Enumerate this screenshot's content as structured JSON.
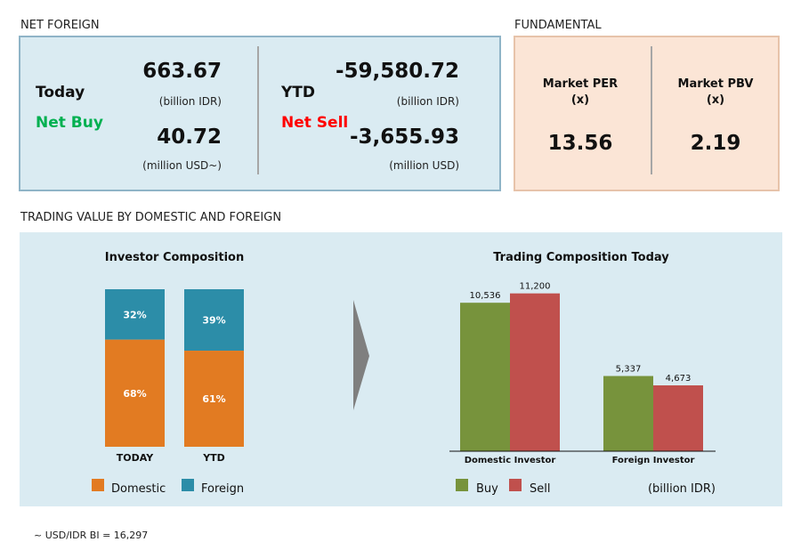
{
  "net_foreign": {
    "section_title": "NET FOREIGN",
    "today": {
      "label": "Today",
      "direction": "Net Buy",
      "idr_value": "663.67",
      "idr_unit": "(billion IDR)",
      "usd_value": "40.72",
      "usd_unit": "(million USD~)"
    },
    "ytd": {
      "label": "YTD",
      "direction": "Net Sell",
      "idr_value": "-59,580.72",
      "idr_unit": "(billion IDR)",
      "usd_value": "-3,655.93",
      "usd_unit": "(million USD)"
    }
  },
  "fundamental": {
    "section_title": "FUNDAMENTAL",
    "per_label": "Market PER",
    "per_unit": "(x)",
    "per_value": "13.56",
    "pbv_label": "Market PBV",
    "pbv_unit": "(x)",
    "pbv_value": "2.19"
  },
  "trading_section_title": "TRADING VALUE BY DOMESTIC AND FOREIGN",
  "footnote": "~ USD/IDR BI = 16,297",
  "colors": {
    "domestic": "#e27b22",
    "foreign": "#2c8da8",
    "buy": "#77933c",
    "sell": "#c0504d",
    "net_buy": "#00b050",
    "net_sell": "#ff0000"
  },
  "chart_data": [
    {
      "type": "bar",
      "stacked": true,
      "title": "Investor Composition",
      "categories": [
        "TODAY",
        "YTD"
      ],
      "series": [
        {
          "name": "Domestic",
          "values": [
            68,
            61
          ],
          "labels": [
            "68%",
            "61%"
          ]
        },
        {
          "name": "Foreign",
          "values": [
            32,
            39
          ],
          "labels": [
            "32%",
            "39%"
          ]
        }
      ],
      "legend": "bottom"
    },
    {
      "type": "bar",
      "title": "Trading Composition Today",
      "categories": [
        "Domestic Investor",
        "Foreign Investor"
      ],
      "series": [
        {
          "name": "Buy",
          "values": [
            10536,
            5337
          ],
          "labels": [
            "10,536",
            "5,337"
          ]
        },
        {
          "name": "Sell",
          "values": [
            11200,
            4673
          ],
          "labels": [
            "11,200",
            "4,673"
          ]
        }
      ],
      "unit_note": "(billion IDR)",
      "legend": "bottom"
    }
  ]
}
